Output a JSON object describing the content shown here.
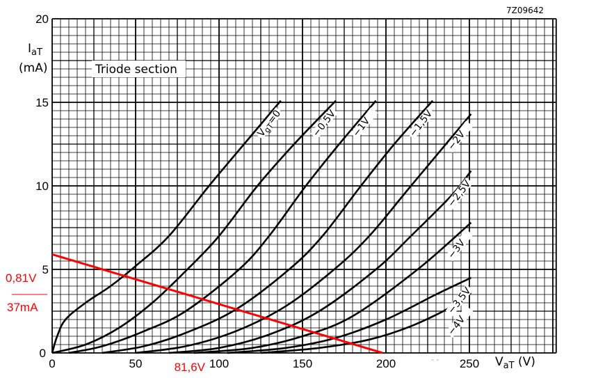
{
  "chart_data": {
    "type": "line",
    "title": "Triode section",
    "figure_code": "7Z09642",
    "xlabel": "VaT (V)",
    "xlabel_main": "V",
    "xlabel_sub": "aT",
    "xlabel_unit": "(V)",
    "ylabel_main": "I",
    "ylabel_sub": "aT",
    "ylabel_unit": "(mA)",
    "xlim": [
      0,
      302
    ],
    "ylim": [
      0,
      20
    ],
    "grid": true,
    "xticks": [
      "0",
      "50",
      "100",
      "150",
      "200",
      "250"
    ],
    "xtick_values": [
      0,
      50,
      100,
      150,
      200,
      250
    ],
    "yticks": [
      "0",
      "5",
      "10",
      "15",
      "20"
    ],
    "ytick_values": [
      0,
      5,
      10,
      15,
      20
    ],
    "series": [
      {
        "name": "VgT=0",
        "label_main": "V",
        "label_sub": "gT",
        "label_rest": "=0",
        "points": [
          [
            0,
            0
          ],
          [
            3,
            1
          ],
          [
            8,
            2
          ],
          [
            20,
            3
          ],
          [
            35,
            4
          ],
          [
            50,
            5.2
          ],
          [
            70,
            7
          ],
          [
            94,
            10
          ],
          [
            115,
            12.5
          ],
          [
            137,
            15.1
          ]
        ]
      },
      {
        "name": "-0.5V",
        "label": "−0,5V",
        "points": [
          [
            0,
            0
          ],
          [
            20,
            0.5
          ],
          [
            40,
            1.5
          ],
          [
            60,
            3
          ],
          [
            81,
            5
          ],
          [
            100,
            7
          ],
          [
            123,
            10
          ],
          [
            145,
            12.5
          ],
          [
            170,
            15.1
          ]
        ]
      },
      {
        "name": "-1V",
        "label": "−1V",
        "points": [
          [
            10,
            0
          ],
          [
            30,
            0.4
          ],
          [
            55,
            1.3
          ],
          [
            80,
            2.5
          ],
          [
            112,
            5
          ],
          [
            130,
            7
          ],
          [
            152,
            10
          ],
          [
            172,
            12.5
          ],
          [
            194,
            15.1
          ]
        ]
      },
      {
        "name": "-1.5V",
        "label": "−1,5V",
        "points": [
          [
            30,
            0
          ],
          [
            55,
            0.4
          ],
          [
            80,
            1.2
          ],
          [
            110,
            2.6
          ],
          [
            142,
            5
          ],
          [
            162,
            7
          ],
          [
            185,
            10
          ],
          [
            205,
            12.5
          ],
          [
            228,
            15.1
          ]
        ]
      },
      {
        "name": "-2V",
        "label": "−2V",
        "points": [
          [
            50,
            0
          ],
          [
            80,
            0.4
          ],
          [
            110,
            1.3
          ],
          [
            140,
            2.8
          ],
          [
            169,
            5
          ],
          [
            190,
            7
          ],
          [
            215,
            10
          ],
          [
            251,
            14.3
          ]
        ]
      },
      {
        "name": "-2.5V",
        "label": "−2,5V",
        "points": [
          [
            70,
            0
          ],
          [
            100,
            0.3
          ],
          [
            130,
            1.1
          ],
          [
            160,
            2.5
          ],
          [
            194,
            5
          ],
          [
            215,
            7
          ],
          [
            240,
            9.5
          ],
          [
            251,
            10.9
          ]
        ]
      },
      {
        "name": "-3V",
        "label": "−3V",
        "points": [
          [
            85,
            0
          ],
          [
            120,
            0.3
          ],
          [
            150,
            1
          ],
          [
            180,
            2.2
          ],
          [
            219,
            5
          ],
          [
            251,
            7.8
          ]
        ]
      },
      {
        "name": "-3.5V",
        "label": "−3,5V",
        "points": [
          [
            105,
            0
          ],
          [
            140,
            0.3
          ],
          [
            170,
            0.9
          ],
          [
            200,
            2
          ],
          [
            230,
            3.5
          ],
          [
            251,
            4.5
          ]
        ]
      },
      {
        "name": "-4V",
        "label": "−4V",
        "points": [
          [
            125,
            0
          ],
          [
            160,
            0.3
          ],
          [
            190,
            0.8
          ],
          [
            215,
            1.6
          ],
          [
            240,
            2.8
          ],
          [
            251,
            3.6
          ]
        ]
      }
    ],
    "load_line": {
      "color": "#ff0000",
      "points": [
        [
          0,
          5.9
        ],
        [
          198,
          0
        ]
      ]
    },
    "annotations": {
      "grid_bias": "0,81V",
      "current": "37mA",
      "anode_voltage": "81,6V",
      "color": "#ff0000"
    }
  }
}
